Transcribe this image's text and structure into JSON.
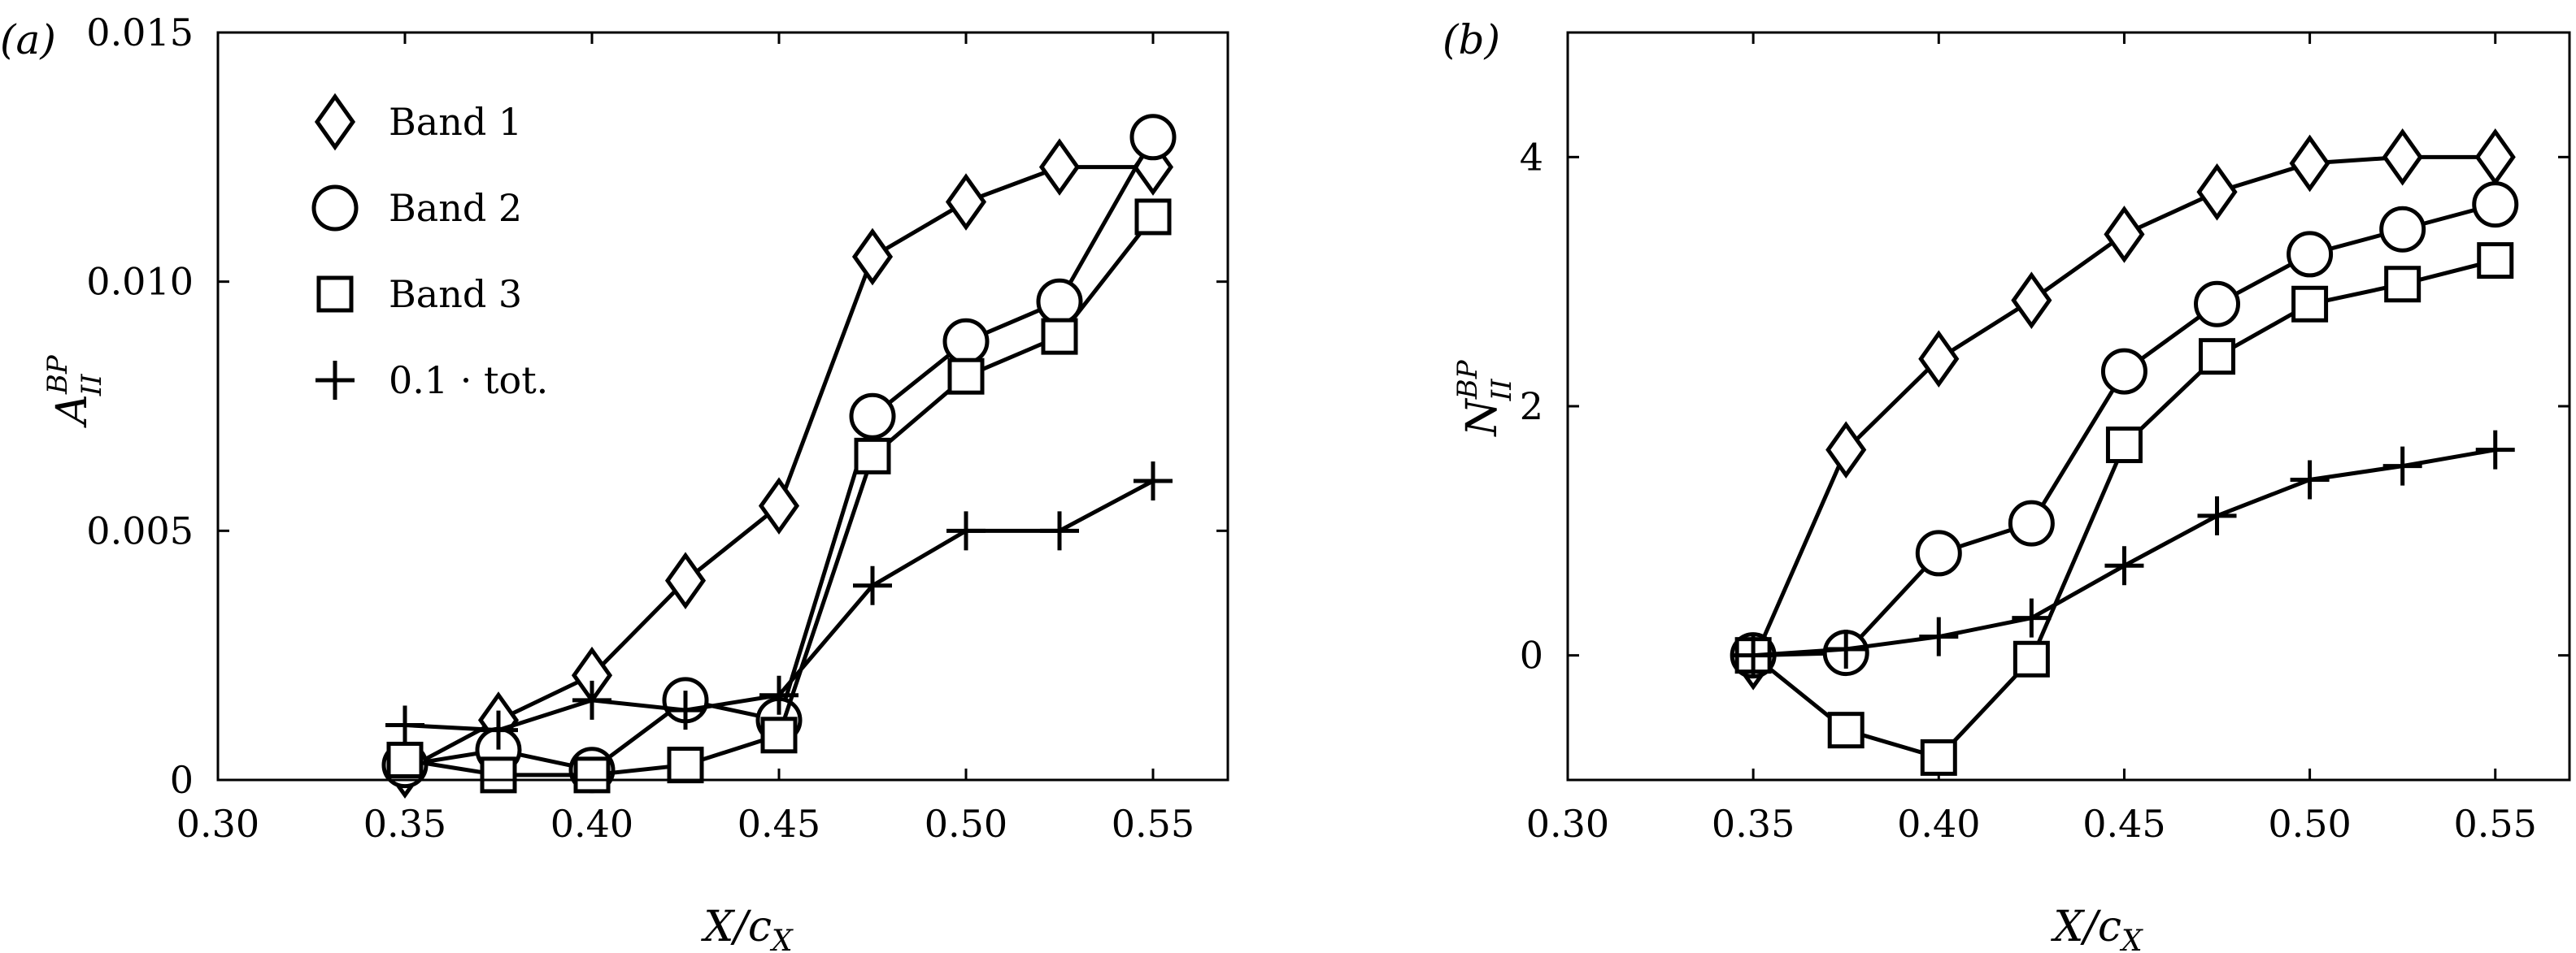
{
  "chart_data": [
    {
      "type": "line",
      "panel_label": "(a)",
      "xlabel": "X/c",
      "xlabel_sub": "X",
      "ylabel": "A",
      "ylabel_sup": "BP",
      "ylabel_sub": "II",
      "xlim": [
        0.3,
        0.57
      ],
      "ylim": [
        0,
        0.015
      ],
      "xticks": [
        0.3,
        0.35,
        0.4,
        0.45,
        0.5,
        0.55
      ],
      "xtick_labels": [
        "0.30",
        "0.35",
        "0.40",
        "0.45",
        "0.50",
        "0.55"
      ],
      "yticks": [
        0,
        0.005,
        0.01,
        0.015
      ],
      "ytick_labels": [
        "0",
        "0.005",
        "0.010",
        "0.015"
      ],
      "legend": "top-left",
      "grid": false,
      "x": [
        0.35,
        0.375,
        0.4,
        0.425,
        0.45,
        0.475,
        0.5,
        0.525,
        0.55
      ],
      "series": [
        {
          "name": "Band 1",
          "marker": "diamond",
          "values": [
            0.0002,
            0.0012,
            0.0021,
            0.004,
            0.0055,
            0.0105,
            0.0116,
            0.0123,
            0.0123
          ]
        },
        {
          "name": "Band 2",
          "marker": "circle",
          "values": [
            0.0003,
            0.0006,
            0.0002,
            0.0016,
            0.0012,
            0.0073,
            0.0088,
            0.0096,
            0.0129
          ]
        },
        {
          "name": "Band 3",
          "marker": "square",
          "values": [
            0.0004,
            0.0001,
            0.0001,
            0.0003,
            0.0009,
            0.0065,
            0.0081,
            0.0089,
            0.0113
          ]
        },
        {
          "name": "0.1 · tot.",
          "marker": "plus",
          "values": [
            0.0011,
            0.001,
            0.0016,
            0.0014,
            0.0017,
            0.0039,
            0.005,
            0.005,
            0.006
          ]
        }
      ]
    },
    {
      "type": "line",
      "panel_label": "(b)",
      "xlabel": "X/c",
      "xlabel_sub": "X",
      "ylabel": "N",
      "ylabel_sup": "BP",
      "ylabel_sub": "II",
      "xlim": [
        0.3,
        0.57
      ],
      "ylim": [
        -1,
        5
      ],
      "xticks": [
        0.3,
        0.35,
        0.4,
        0.45,
        0.5,
        0.55
      ],
      "xtick_labels": [
        "0.30",
        "0.35",
        "0.40",
        "0.45",
        "0.50",
        "0.55"
      ],
      "yticks": [
        0,
        2,
        4
      ],
      "ytick_labels": [
        "0",
        "2",
        "4"
      ],
      "grid": false,
      "x": [
        0.35,
        0.375,
        0.4,
        0.425,
        0.45,
        0.475,
        0.5,
        0.525,
        0.55
      ],
      "series": [
        {
          "name": "Band 1",
          "marker": "diamond",
          "values": [
            -0.05,
            1.65,
            2.38,
            2.85,
            3.38,
            3.72,
            3.95,
            4.0,
            4.0
          ]
        },
        {
          "name": "Band 2",
          "marker": "circle",
          "values": [
            0.0,
            0.02,
            0.82,
            1.06,
            2.28,
            2.82,
            3.22,
            3.42,
            3.62
          ]
        },
        {
          "name": "Band 3",
          "marker": "square",
          "values": [
            0.0,
            -0.6,
            -0.82,
            -0.03,
            1.69,
            2.4,
            2.82,
            2.98,
            3.17
          ]
        },
        {
          "name": "0.1 · tot.",
          "marker": "plus",
          "values": [
            0.0,
            0.05,
            0.15,
            0.3,
            0.72,
            1.12,
            1.41,
            1.52,
            1.65
          ]
        }
      ]
    }
  ]
}
